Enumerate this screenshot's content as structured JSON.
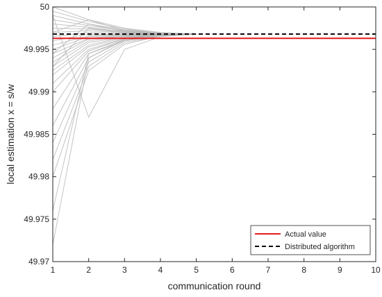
{
  "chart_data": {
    "type": "line",
    "title": "",
    "xlabel": "communication round",
    "ylabel": "local estimation x = s/w",
    "xlim": [
      1,
      10
    ],
    "ylim": [
      49.97,
      50
    ],
    "x_ticks": [
      "1",
      "2",
      "3",
      "4",
      "5",
      "6",
      "7",
      "8",
      "9",
      "10"
    ],
    "y_ticks": [
      "49.97",
      "49.975",
      "49.98",
      "49.985",
      "49.99",
      "49.995",
      "50"
    ],
    "grid": false,
    "legend_position": "bottom-right",
    "series": [
      {
        "name": "Actual value",
        "style": "solid",
        "color": "#e8191c",
        "x": [
          1,
          10
        ],
        "y": [
          49.9963,
          49.9963
        ]
      },
      {
        "name": "Distributed algorithm",
        "style": "dashed",
        "color": "#000000",
        "x": [
          1,
          10
        ],
        "y": [
          49.9968,
          49.9968
        ]
      }
    ],
    "node_estimates": {
      "color": "#b4b4b4",
      "x": [
        1,
        2,
        3,
        4,
        5
      ],
      "samples": [
        [
          50.0,
          49.9985,
          49.9975,
          49.997,
          49.9968
        ],
        [
          49.9995,
          49.9983,
          49.9974,
          49.9969,
          49.9968
        ],
        [
          49.999,
          49.998,
          49.9973,
          49.9969,
          49.9968
        ],
        [
          49.9985,
          49.9978,
          49.9972,
          49.9969,
          49.9968
        ],
        [
          49.998,
          49.9976,
          49.9971,
          49.9968,
          49.9968
        ],
        [
          49.9975,
          49.9974,
          49.997,
          49.9968,
          49.9968
        ],
        [
          49.997,
          49.9972,
          49.997,
          49.9968,
          49.9968
        ],
        [
          49.9965,
          49.997,
          49.9969,
          49.9968,
          49.9968
        ],
        [
          49.996,
          49.9968,
          49.9968,
          49.9968,
          49.9968
        ],
        [
          49.9955,
          49.9966,
          49.9968,
          49.9968,
          49.9968
        ],
        [
          49.995,
          49.9965,
          49.9967,
          49.9968,
          49.9968
        ],
        [
          49.9945,
          49.9963,
          49.9967,
          49.9968,
          49.9968
        ],
        [
          49.994,
          49.9962,
          49.9966,
          49.9968,
          49.9968
        ],
        [
          49.9935,
          49.996,
          49.9966,
          49.9967,
          49.9968
        ],
        [
          49.993,
          49.9958,
          49.9965,
          49.9967,
          49.9968
        ],
        [
          49.9925,
          49.9955,
          49.9965,
          49.9967,
          49.9968
        ],
        [
          49.992,
          49.9953,
          49.9964,
          49.9967,
          49.9968
        ],
        [
          49.991,
          49.995,
          49.9963,
          49.9967,
          49.9968
        ],
        [
          49.99,
          49.9948,
          49.9963,
          49.9967,
          49.9968
        ],
        [
          49.988,
          49.9945,
          49.9962,
          49.9967,
          49.9968
        ],
        [
          49.986,
          49.994,
          49.9961,
          49.9966,
          49.9968
        ],
        [
          49.984,
          49.9935,
          49.996,
          49.9966,
          49.9968
        ],
        [
          49.982,
          49.993,
          49.9958,
          49.9966,
          49.9968
        ],
        [
          49.98,
          49.9925,
          49.9956,
          49.9966,
          49.9968
        ],
        [
          49.976,
          49.9945,
          49.996,
          49.9966,
          49.9968
        ],
        [
          49.972,
          49.994,
          49.9962,
          49.9967,
          49.9968
        ],
        [
          49.999,
          49.987,
          49.995,
          49.9965,
          49.9968
        ],
        [
          49.997,
          49.9985,
          49.9972,
          49.9969,
          49.9968
        ],
        [
          49.9945,
          49.998,
          49.9971,
          49.9969,
          49.9968
        ],
        [
          49.993,
          49.9975,
          49.997,
          49.9968,
          49.9968
        ]
      ]
    }
  },
  "legend": {
    "items": [
      {
        "label": "Actual value"
      },
      {
        "label": "Distributed algorithm"
      }
    ]
  },
  "colors": {
    "actual": "#e8191c",
    "distributed": "#000000",
    "nodes": "#b4b4b4",
    "axes": "#262626"
  }
}
